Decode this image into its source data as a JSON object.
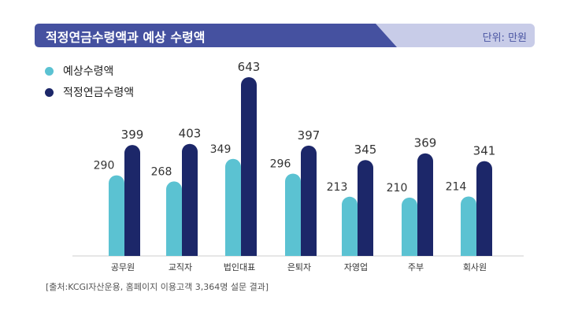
{
  "header": {
    "title": "적정연금수령액과 예상 수령액",
    "unit": "단위: 만원"
  },
  "colors": {
    "expected": "#5bc2d2",
    "adequate": "#1c2769",
    "header": "#4551a0",
    "header_light": "#c8cce8"
  },
  "source": "[출처:KCGI자산운용, 홈페이지 이용고객 3,364명 설문 결과]",
  "chart_data": {
    "type": "bar",
    "title": "적정연금수령액과 예상 수령액",
    "unit": "단위: 만원",
    "categories": [
      "공무원",
      "교직자",
      "법인대표",
      "은퇴자",
      "자영업",
      "주부",
      "회사원"
    ],
    "series": [
      {
        "name": "예상수령액",
        "values": [
          290,
          268,
          349,
          296,
          213,
          210,
          214
        ],
        "color": "#5bc2d2"
      },
      {
        "name": "적정연금수령액",
        "values": [
          399,
          403,
          643,
          397,
          345,
          369,
          341
        ],
        "color": "#1c2769"
      }
    ],
    "ylim": [
      0,
      643
    ],
    "legend": "top-left",
    "grid": false
  }
}
